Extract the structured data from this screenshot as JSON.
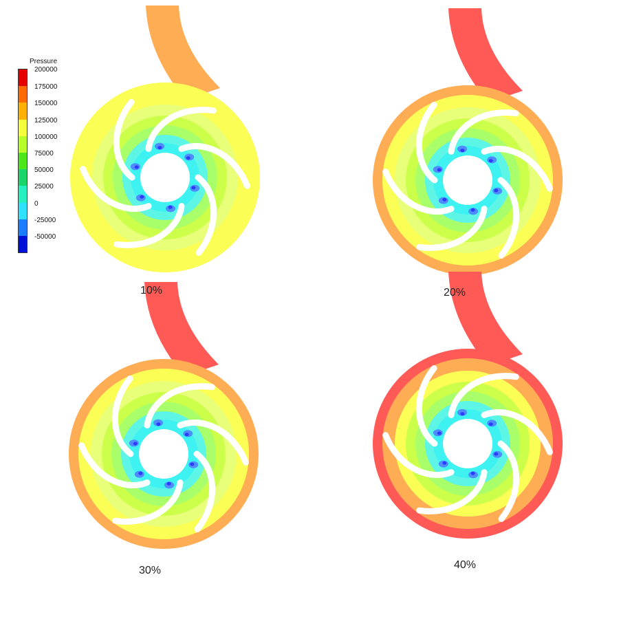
{
  "legend": {
    "title": "Pressure",
    "labels": [
      "200000",
      "175000",
      "150000",
      "125000",
      "100000",
      "75000",
      "50000",
      "25000",
      "0",
      "-25000",
      "-50000"
    ],
    "colors": [
      "#e60000",
      "#ff6a00",
      "#ffb000",
      "#f5ff3c",
      "#b8ff2a",
      "#4ce61a",
      "#1ad66a",
      "#27f0c0",
      "#2fe0ff",
      "#1a7dff",
      "#0010d6"
    ]
  },
  "panels": [
    {
      "caption": "10%",
      "outlet_color": "#ffad55",
      "casing_color": "#fbff55",
      "ring_color": "#fbff55",
      "inner_ring_color": "#e8ff7a"
    },
    {
      "caption": "20%",
      "outlet_color": "#ff5a55",
      "casing_color": "#ffad55",
      "ring_color": "#fbff55",
      "inner_ring_color": "#e8ff7a"
    },
    {
      "caption": "30%",
      "outlet_color": "#ff5a55",
      "casing_color": "#ffad55",
      "ring_color": "#fbff55",
      "inner_ring_color": "#e8ff7a"
    },
    {
      "caption": "40%",
      "outlet_color": "#ff5a55",
      "casing_color": "#ff5a55",
      "ring_color": "#ffad55",
      "inner_ring_color": "#fbff55"
    }
  ],
  "palette": {
    "mid_green": "#ccff4a",
    "green": "#7cf24a",
    "light_green": "#a8ff6a",
    "cyan": "#3ff2f2",
    "light_cyan": "#5df5e6",
    "blue": "#4f8cff",
    "dark_blue": "#2b3cff",
    "blade": "#ffffff"
  }
}
